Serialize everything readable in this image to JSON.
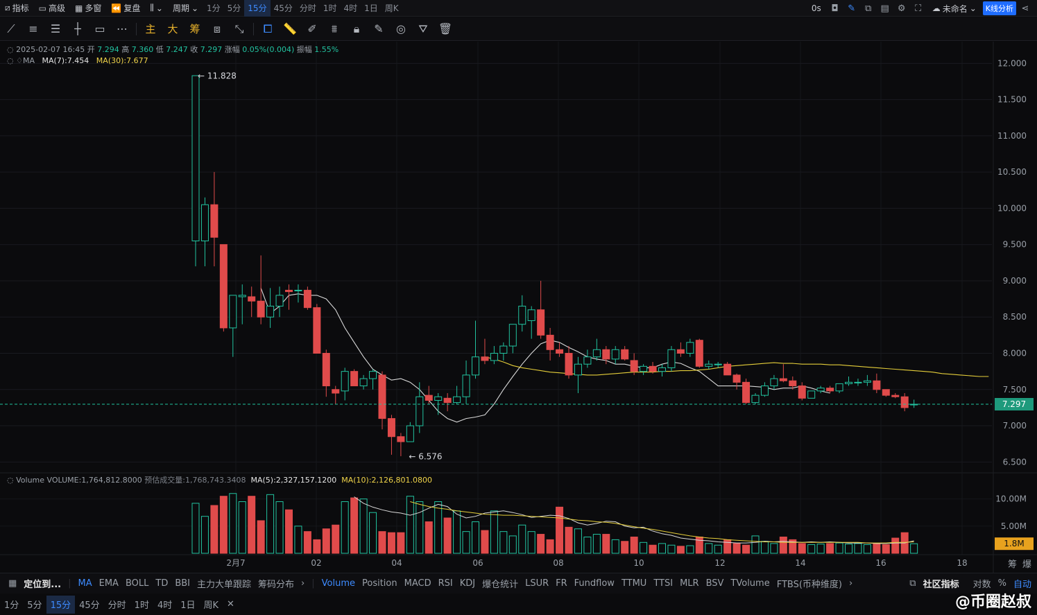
{
  "topbar": {
    "items": [
      "指标",
      "高级",
      "多窗",
      "复盘"
    ],
    "period_label": "周期",
    "periods": [
      "1分",
      "5分",
      "15分",
      "45分",
      "分时",
      "1时",
      "4时",
      "1日",
      "周K"
    ],
    "active_period": "15分",
    "countdown": "0s",
    "layout_name": "未命名",
    "kline_button": "K线分析"
  },
  "toolbar": {
    "gold_tools": [
      "主",
      "大",
      "筹"
    ]
  },
  "legend": {
    "info_date": "2025-02-07 16:45",
    "open_label": "开",
    "open": "7.294",
    "high_label": "高",
    "high": "7.360",
    "low_label": "低",
    "low": "7.247",
    "close_label": "收",
    "close": "7.297",
    "chg_label": "涨幅",
    "chg": "0.05%(0.004)",
    "amp_label": "振幅",
    "amp": "1.55%",
    "ma_label": "MA",
    "ma7": "MA(7):7.454",
    "ma30": "MA(30):7.677",
    "vol_label": "Volume",
    "vol_value": "VOLUME:1,764,812.8000",
    "vol_est": "预估成交量:1,768,743.3408",
    "vol_ma5": "MA(5):2,327,157.1200",
    "vol_ma10": "MA(10):2,126,801.0800"
  },
  "chart_data": {
    "type": "candlestick",
    "price_ticks": [
      "12.000",
      "11.500",
      "11.000",
      "10.500",
      "10.000",
      "9.500",
      "9.000",
      "8.500",
      "8.000",
      "7.500",
      "7.000",
      "6.500"
    ],
    "volume_ticks": [
      "10.00M",
      "5.00M"
    ],
    "x_ticks": [
      "2月7",
      "02",
      "04",
      "06",
      "08",
      "10",
      "12",
      "14",
      "16",
      "18"
    ],
    "last_price": "7.297",
    "last_volume": "1.8M",
    "max_marker": "11.828",
    "min_marker": "6.576",
    "price_range": [
      6.35,
      12.3
    ],
    "volume_max": 12.5,
    "colors": {
      "up": "#22c3a0",
      "down": "#e04b4b",
      "ma7": "#d9d9d9",
      "ma30": "#e6cf3a"
    },
    "candles": [
      [
        9.55,
        11.83,
        9.2,
        11.83
      ],
      [
        9.55,
        10.15,
        9.2,
        10.05
      ],
      [
        10.05,
        10.5,
        9.2,
        9.6
      ],
      [
        9.5,
        9.5,
        8.3,
        8.35
      ],
      [
        8.35,
        8.8,
        7.95,
        8.8
      ],
      [
        8.78,
        8.95,
        8.4,
        8.8
      ],
      [
        8.78,
        8.92,
        8.5,
        8.72
      ],
      [
        8.72,
        9.35,
        8.4,
        8.5
      ],
      [
        8.5,
        8.9,
        8.35,
        8.65
      ],
      [
        8.65,
        8.92,
        8.5,
        8.8
      ],
      [
        8.87,
        8.95,
        8.6,
        8.85
      ],
      [
        8.87,
        8.95,
        8.7,
        8.87
      ],
      [
        8.87,
        8.92,
        8.6,
        8.63
      ],
      [
        8.63,
        8.68,
        8.05,
        8.0
      ],
      [
        8.0,
        8.05,
        7.4,
        7.55
      ],
      [
        7.5,
        7.55,
        7.3,
        7.45
      ],
      [
        7.48,
        7.8,
        7.35,
        7.75
      ],
      [
        7.75,
        7.78,
        7.55,
        7.55
      ],
      [
        7.55,
        7.7,
        7.5,
        7.65
      ],
      [
        7.65,
        7.78,
        7.5,
        7.75
      ],
      [
        7.7,
        7.75,
        6.95,
        7.1
      ],
      [
        7.1,
        7.15,
        6.6,
        6.85
      ],
      [
        6.85,
        6.9,
        6.58,
        6.78
      ],
      [
        6.78,
        7.05,
        6.78,
        7.0
      ],
      [
        7.0,
        7.6,
        6.9,
        7.4
      ],
      [
        7.42,
        7.55,
        7.3,
        7.35
      ],
      [
        7.35,
        7.45,
        7.15,
        7.4
      ],
      [
        7.38,
        7.45,
        7.2,
        7.32
      ],
      [
        7.32,
        7.55,
        7.3,
        7.4
      ],
      [
        7.4,
        7.9,
        7.3,
        7.7
      ],
      [
        7.7,
        8.45,
        7.65,
        7.95
      ],
      [
        7.95,
        8.2,
        7.85,
        7.9
      ],
      [
        7.9,
        8.1,
        7.85,
        8.0
      ],
      [
        8.0,
        8.15,
        7.9,
        8.1
      ],
      [
        8.1,
        8.35,
        8.0,
        8.4
      ],
      [
        8.4,
        8.8,
        8.3,
        8.65
      ],
      [
        8.45,
        8.65,
        8.2,
        8.6
      ],
      [
        8.6,
        9.0,
        8.2,
        8.25
      ],
      [
        8.25,
        8.35,
        7.9,
        8.05
      ],
      [
        8.05,
        8.15,
        7.95,
        8.0
      ],
      [
        8.0,
        8.1,
        7.65,
        7.7
      ],
      [
        7.7,
        7.95,
        7.45,
        7.85
      ],
      [
        7.85,
        8.05,
        7.8,
        7.95
      ],
      [
        7.95,
        8.2,
        7.9,
        8.05
      ],
      [
        8.05,
        8.1,
        7.85,
        7.92
      ],
      [
        7.92,
        8.1,
        7.85,
        8.05
      ],
      [
        8.05,
        8.1,
        7.9,
        7.92
      ],
      [
        7.9,
        8.0,
        7.7,
        7.75
      ],
      [
        7.75,
        7.85,
        7.7,
        7.82
      ],
      [
        7.82,
        7.88,
        7.72,
        7.75
      ],
      [
        7.75,
        7.85,
        7.68,
        7.8
      ],
      [
        7.8,
        8.1,
        7.75,
        8.05
      ],
      [
        8.05,
        8.15,
        7.95,
        8.0
      ],
      [
        8.0,
        8.2,
        7.95,
        8.15
      ],
      [
        8.18,
        8.2,
        7.8,
        7.82
      ],
      [
        7.82,
        7.9,
        7.78,
        7.85
      ],
      [
        7.85,
        7.88,
        7.8,
        7.85
      ],
      [
        7.85,
        7.88,
        7.7,
        7.7
      ],
      [
        7.7,
        7.72,
        7.5,
        7.6
      ],
      [
        7.6,
        7.65,
        7.3,
        7.32
      ],
      [
        7.32,
        7.45,
        7.3,
        7.42
      ],
      [
        7.42,
        7.6,
        7.4,
        7.55
      ],
      [
        7.55,
        7.7,
        7.5,
        7.65
      ],
      [
        7.65,
        7.85,
        7.6,
        7.62
      ],
      [
        7.62,
        7.68,
        7.5,
        7.55
      ],
      [
        7.55,
        7.6,
        7.35,
        7.38
      ],
      [
        7.38,
        7.48,
        7.38,
        7.48
      ],
      [
        7.48,
        7.55,
        7.45,
        7.52
      ],
      [
        7.52,
        7.55,
        7.45,
        7.48
      ],
      [
        7.48,
        7.58,
        7.45,
        7.58
      ],
      [
        7.58,
        7.68,
        7.55,
        7.6
      ],
      [
        7.6,
        7.65,
        7.55,
        7.6
      ],
      [
        7.6,
        7.7,
        7.55,
        7.62
      ],
      [
        7.62,
        7.72,
        7.45,
        7.5
      ],
      [
        7.5,
        7.5,
        7.4,
        7.42
      ],
      [
        7.42,
        7.45,
        7.38,
        7.4
      ],
      [
        7.4,
        7.45,
        7.2,
        7.25
      ],
      [
        7.294,
        7.36,
        7.247,
        7.297
      ]
    ],
    "volumes": [
      9.2,
      6.8,
      8.8,
      10.5,
      11.0,
      9.5,
      10.5,
      6.0,
      10.8,
      9.5,
      8.0,
      5.0,
      4.0,
      2.5,
      4.5,
      5.2,
      9.5,
      10.2,
      10.0,
      7.5,
      4.0,
      3.8,
      3.8,
      10.5,
      9.5,
      5.8,
      9.5,
      6.5,
      7.8,
      4.0,
      5.8,
      4.2,
      7.8,
      4.0,
      3.2,
      5.2,
      4.0,
      3.5,
      2.5,
      8.5,
      4.8,
      4.5,
      3.0,
      3.5,
      3.5,
      2.5,
      2.2,
      3.0,
      2.0,
      1.5,
      1.8,
      1.5,
      1.3,
      1.4,
      3.0,
      1.8,
      1.5,
      2.5,
      1.8,
      1.5,
      3.2,
      2.2,
      1.8,
      3.0,
      2.5,
      1.8,
      1.6,
      1.7,
      1.8,
      1.9,
      1.7,
      1.8,
      1.6,
      1.8,
      1.6,
      2.8,
      3.8,
      1.76
    ],
    "ma7": [
      8.9,
      8.55,
      8.65,
      8.8,
      8.82,
      8.8,
      8.8,
      8.75,
      8.6,
      8.35,
      8.15,
      7.95,
      7.78,
      7.7,
      7.63,
      7.65,
      7.6,
      7.5,
      7.35,
      7.2,
      7.1,
      7.05,
      7.1,
      7.12,
      7.15,
      7.3,
      7.5,
      7.68,
      7.85,
      8.0,
      8.13,
      8.18,
      8.15,
      8.08,
      8.02,
      7.95,
      7.92,
      7.9,
      7.85,
      7.85,
      7.82,
      7.8,
      7.8,
      7.85,
      7.88,
      7.86,
      7.8,
      7.75,
      7.65,
      7.55,
      7.55,
      7.55,
      7.55,
      7.54,
      7.53,
      7.5,
      7.52,
      7.52,
      7.55,
      7.52,
      7.48,
      7.45
    ],
    "ma30": [
      7.95,
      7.92,
      7.88,
      7.83,
      7.8,
      7.78,
      7.76,
      7.74,
      7.73,
      7.72,
      7.71,
      7.7,
      7.7,
      7.71,
      7.72,
      7.73,
      7.74,
      7.74,
      7.74,
      7.75,
      7.75,
      7.76,
      7.76,
      7.77,
      7.78,
      7.8,
      7.82,
      7.83,
      7.84,
      7.85,
      7.86,
      7.87,
      7.86,
      7.86,
      7.85,
      7.85,
      7.85,
      7.84,
      7.84,
      7.83,
      7.82,
      7.81,
      7.8,
      7.79,
      7.78,
      7.77,
      7.76,
      7.75,
      7.74,
      7.72,
      7.71,
      7.7,
      7.69,
      7.68,
      7.68
    ],
    "vol_ma5": [
      10.4,
      9.2,
      8.5,
      8.0,
      7.6,
      7.4,
      7.0,
      7.5,
      8.3,
      9.0,
      8.6,
      7.2,
      6.5,
      6.8,
      7.4,
      7.6,
      7.8,
      7.5,
      7.1,
      6.6,
      6.8,
      7.0,
      6.9,
      6.4,
      5.6,
      5.2,
      5.5,
      5.9,
      5.8,
      5.0,
      4.7,
      4.8,
      4.1,
      3.6,
      3.3,
      2.8,
      2.6,
      2.4,
      2.3,
      2.1,
      2.0,
      1.9,
      1.9,
      2.0,
      2.2,
      2.1,
      2.2,
      2.1,
      2.0,
      2.1,
      2.0,
      2.1,
      2.0,
      1.9,
      1.9,
      1.9,
      1.8,
      1.8,
      1.9,
      1.9,
      2.3
    ],
    "vol_ma10": [
      9.5,
      9.0,
      8.6,
      8.3,
      8.1,
      7.8,
      7.6,
      7.4,
      7.2,
      7.1,
      7.0,
      7.0,
      6.9,
      6.8,
      6.7,
      6.6,
      6.5,
      6.3,
      6.1,
      6.0,
      5.8,
      5.7,
      5.5,
      5.2,
      4.9,
      4.6,
      4.4,
      4.1,
      3.8,
      3.5,
      3.2,
      3.0,
      2.8,
      2.7,
      2.5,
      2.4,
      2.3,
      2.2,
      2.1,
      2.1,
      2.0,
      2.0,
      2.0,
      2.0,
      2.0,
      2.0,
      2.0,
      2.0,
      2.0,
      1.9,
      1.9,
      1.9,
      2.0,
      2.0,
      2.1
    ]
  },
  "bottombar": {
    "locate": "定位到...",
    "main_indicators": [
      "MA",
      "EMA",
      "BOLL",
      "TD",
      "BBI",
      "主力大单跟踪",
      "筹码分布"
    ],
    "sub_indicators": [
      "Volume",
      "Position",
      "MACD",
      "RSI",
      "KDJ",
      "爆仓统计",
      "LSUR",
      "FR",
      "Fundflow",
      "TTMU",
      "TTSI",
      "MLR",
      "BSV",
      "TVolume",
      "FTBS(币种维度)"
    ],
    "community": "社区指标",
    "log_label": "对数",
    "pct_label": "%",
    "auto_label": "自动",
    "periods": [
      "1分",
      "5分",
      "15分",
      "45分",
      "分时",
      "1时",
      "4时",
      "1日",
      "周K"
    ],
    "active_period": "15分",
    "axis_right_labels": [
      "筹",
      "爆"
    ]
  },
  "watermark": "@币圈赵叔"
}
